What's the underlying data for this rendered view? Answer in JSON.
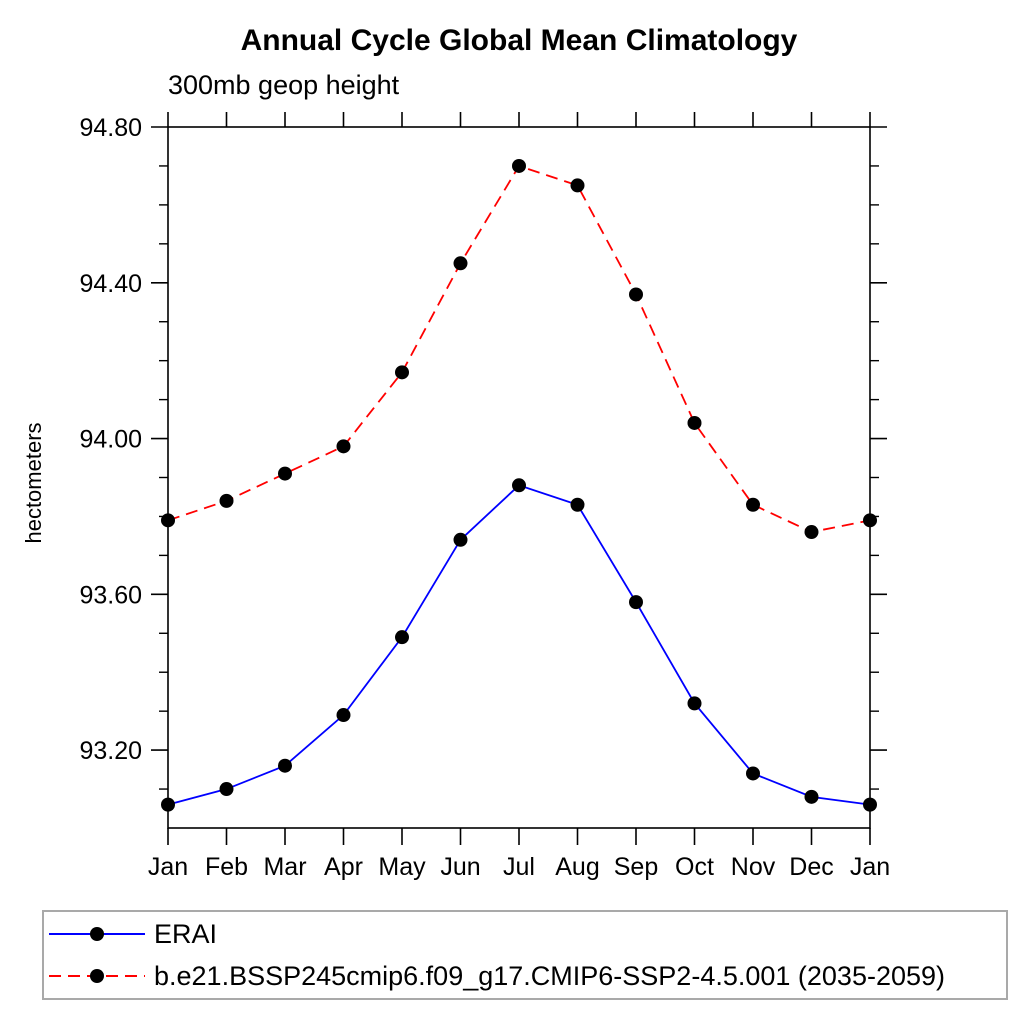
{
  "chart_data": {
    "type": "line",
    "title": "Annual Cycle Global Mean Climatology",
    "subtitle": "300mb geop height",
    "ylabel": "hectometers",
    "xlabel": "",
    "categories": [
      "Jan",
      "Feb",
      "Mar",
      "Apr",
      "May",
      "Jun",
      "Jul",
      "Aug",
      "Sep",
      "Oct",
      "Nov",
      "Dec",
      "Jan"
    ],
    "series": [
      {
        "name": "ERAI",
        "line_color": "#0000ff",
        "line_style": "solid",
        "marker": "filled-circle",
        "marker_color": "#000000",
        "values": [
          93.06,
          93.1,
          93.16,
          93.29,
          93.49,
          93.74,
          93.88,
          93.83,
          93.58,
          93.32,
          93.14,
          93.08,
          93.06
        ]
      },
      {
        "name": "b.e21.BSSP245cmip6.f09_g17.CMIP6-SSP2-4.5.001 (2035-2059)",
        "line_color": "#ff0000",
        "line_style": "dashed",
        "marker": "filled-circle",
        "marker_color": "#000000",
        "values": [
          93.79,
          93.84,
          93.91,
          93.98,
          94.17,
          94.45,
          94.7,
          94.65,
          94.37,
          94.04,
          93.83,
          93.76,
          93.79
        ]
      }
    ],
    "ylim": [
      93.0,
      94.8
    ],
    "yticks_major": [
      93.2,
      93.6,
      94.0,
      94.4,
      94.8
    ],
    "ytick_labels": [
      "93.20",
      "93.60",
      "94.00",
      "94.40",
      "94.80"
    ],
    "ytick_minor_step": 0.1,
    "grid": false,
    "legend_position": "below-plot-left",
    "axis_color": "#000000",
    "text_color": "#000000",
    "background_color": "#ffffff"
  }
}
